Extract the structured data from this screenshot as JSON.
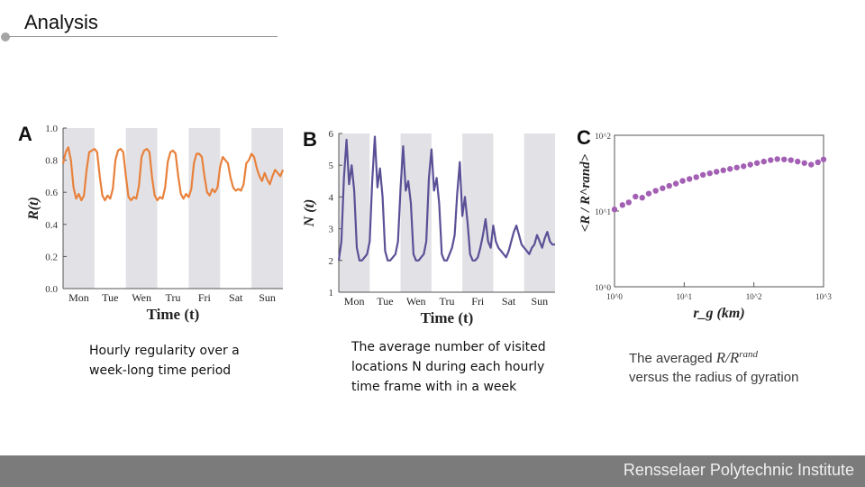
{
  "slide": {
    "title": "Analysis",
    "footer": "Rensselaer Polytechnic Institute",
    "caption_a": "Hourly regularity over a week-long time period",
    "caption_b": "The average number of visited locations N during each hourly time frame with in a week",
    "caption_c_prefix": "The averaged",
    "caption_c_formula": "R/R",
    "caption_c_sup": "rand",
    "caption_c_suffix": "versus the radius of gyration"
  },
  "colors": {
    "series_a": "#e8813c",
    "series_b": "#5a5096",
    "series_c": "#a35fb3",
    "shade": "#e2e2e6"
  },
  "chart_data": [
    {
      "type": "line",
      "panel_letter": "A",
      "ylabel": "R(t)",
      "xlabel": "Time (t)",
      "ylim": [
        0.0,
        1.0
      ],
      "yticks": [
        "0.0",
        "0.2",
        "0.4",
        "0.6",
        "0.8",
        "1.0"
      ],
      "categories": [
        "Mon",
        "Tue",
        "Wen",
        "Tru",
        "Fri",
        "Sat",
        "Sun"
      ],
      "shaded_days": [
        "Mon",
        "Wen",
        "Fri",
        "Sun"
      ],
      "series": [
        {
          "x": [
            0,
            2,
            4,
            6,
            8,
            10,
            12,
            14,
            16,
            18,
            20,
            22,
            24,
            26,
            28,
            30,
            32,
            34,
            36,
            38,
            40,
            42,
            44,
            46,
            48,
            50,
            52,
            54,
            56,
            58,
            60,
            62,
            64,
            66,
            68,
            70,
            72,
            74,
            76,
            78,
            80,
            82,
            84,
            86,
            88,
            90,
            92,
            94,
            96,
            98,
            100,
            102,
            104,
            106,
            108,
            110,
            112,
            114,
            116,
            118,
            120,
            122,
            124,
            126,
            128,
            130,
            132,
            134,
            136,
            138,
            140,
            142,
            144,
            146,
            148,
            150,
            152,
            154,
            156,
            158,
            160,
            162,
            164,
            166,
            168
          ],
          "values": [
            0.78,
            0.85,
            0.88,
            0.8,
            0.63,
            0.56,
            0.59,
            0.55,
            0.58,
            0.74,
            0.85,
            0.86,
            0.87,
            0.85,
            0.7,
            0.58,
            0.55,
            0.58,
            0.56,
            0.62,
            0.8,
            0.86,
            0.87,
            0.85,
            0.7,
            0.57,
            0.55,
            0.57,
            0.56,
            0.64,
            0.82,
            0.86,
            0.87,
            0.85,
            0.69,
            0.58,
            0.55,
            0.57,
            0.56,
            0.63,
            0.79,
            0.85,
            0.86,
            0.84,
            0.7,
            0.59,
            0.56,
            0.59,
            0.57,
            0.62,
            0.78,
            0.84,
            0.84,
            0.82,
            0.7,
            0.6,
            0.58,
            0.62,
            0.6,
            0.63,
            0.76,
            0.82,
            0.8,
            0.78,
            0.69,
            0.63,
            0.61,
            0.62,
            0.61,
            0.65,
            0.78,
            0.8,
            0.84,
            0.82,
            0.75,
            0.7,
            0.67,
            0.72,
            0.68,
            0.65,
            0.7,
            0.74,
            0.72,
            0.7,
            0.74
          ]
        }
      ]
    },
    {
      "type": "line",
      "panel_letter": "B",
      "ylabel": "N (t)",
      "xlabel": "Time (t)",
      "ylim": [
        1,
        6
      ],
      "yticks": [
        "1",
        "2",
        "3",
        "4",
        "5",
        "6"
      ],
      "categories": [
        "Mon",
        "Tue",
        "Wen",
        "Tru",
        "Fri",
        "Sat",
        "Sun"
      ],
      "shaded_days": [
        "Mon",
        "Wen",
        "Fri",
        "Sun"
      ],
      "series": [
        {
          "x": [
            0,
            2,
            4,
            6,
            8,
            10,
            12,
            14,
            16,
            18,
            20,
            22,
            24,
            26,
            28,
            30,
            32,
            34,
            36,
            38,
            40,
            42,
            44,
            46,
            48,
            50,
            52,
            54,
            56,
            58,
            60,
            62,
            64,
            66,
            68,
            70,
            72,
            74,
            76,
            78,
            80,
            82,
            84,
            86,
            88,
            90,
            92,
            94,
            96,
            98,
            100,
            102,
            104,
            106,
            108,
            110,
            112,
            114,
            116,
            118,
            120,
            122,
            124,
            126,
            128,
            130,
            132,
            134,
            136,
            138,
            140,
            142,
            144,
            146,
            148,
            150,
            152,
            154,
            156,
            158,
            160,
            162,
            164,
            166,
            168
          ],
          "values": [
            2.0,
            2.6,
            4.6,
            5.8,
            4.4,
            5.0,
            4.2,
            2.4,
            2.0,
            2.0,
            2.1,
            2.2,
            2.6,
            4.5,
            5.9,
            4.3,
            4.9,
            4.0,
            2.3,
            2.0,
            2.0,
            2.1,
            2.2,
            2.6,
            4.3,
            5.6,
            4.2,
            4.5,
            3.8,
            2.2,
            2.0,
            2.0,
            2.1,
            2.2,
            2.6,
            4.6,
            5.5,
            4.2,
            4.6,
            3.8,
            2.2,
            2.0,
            2.0,
            2.2,
            2.4,
            2.8,
            4.1,
            5.1,
            3.4,
            4.0,
            3.2,
            2.2,
            2.0,
            2.0,
            2.1,
            2.4,
            2.8,
            3.3,
            2.6,
            2.4,
            3.1,
            2.6,
            2.4,
            2.3,
            2.2,
            2.1,
            2.3,
            2.6,
            2.9,
            3.1,
            2.8,
            2.5,
            2.4,
            2.3,
            2.2,
            2.4,
            2.5,
            2.8,
            2.6,
            2.4,
            2.7,
            2.9,
            2.6,
            2.5,
            2.5
          ]
        }
      ]
    },
    {
      "type": "scatter",
      "panel_letter": "C",
      "ylabel": "<R / R^rand>",
      "xlabel": "r_g (km)",
      "x_scale": "log",
      "y_scale": "log",
      "xlim": [
        1,
        1000
      ],
      "ylim": [
        1,
        100
      ],
      "xticks": [
        "10^0",
        "10^1",
        "10^2",
        "10^3"
      ],
      "yticks": [
        "10^0",
        "10^1",
        "10^2"
      ],
      "series": [
        {
          "x": [
            1.0,
            1.3,
            1.6,
            2.0,
            2.5,
            3.1,
            3.9,
            4.9,
            6.1,
            7.6,
            9.5,
            11.9,
            14.9,
            18.6,
            23.3,
            29.1,
            36.4,
            45.5,
            56.9,
            71.1,
            88.9,
            111,
            139,
            174,
            217,
            272,
            340,
            425,
            531,
            664,
            830,
            1000
          ],
          "values": [
            10.5,
            12.0,
            13.0,
            15.5,
            15.0,
            17.0,
            18.5,
            20.0,
            21.5,
            23.0,
            25.0,
            26.5,
            28.0,
            30.0,
            31.5,
            33.0,
            34.5,
            36.0,
            37.5,
            39.0,
            41.0,
            43.0,
            45.0,
            47.0,
            48.5,
            48.0,
            47.0,
            45.0,
            43.0,
            41.0,
            44.0,
            48.0
          ]
        }
      ]
    }
  ]
}
